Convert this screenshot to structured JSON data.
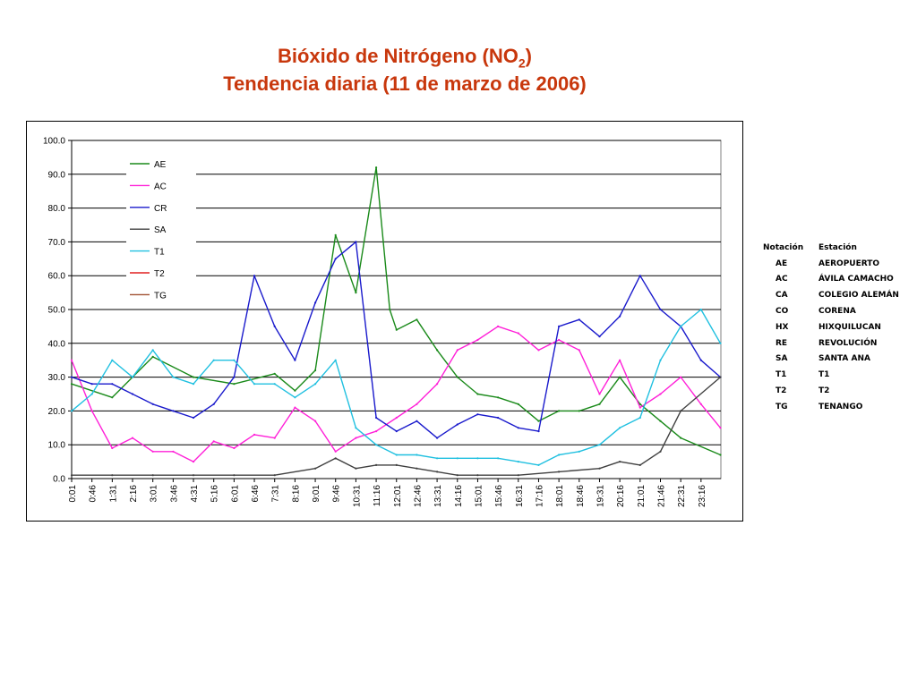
{
  "title": {
    "line1_main": "Bióxido de Nitrógeno (NO",
    "line1_sub": "2",
    "line1_end": ")",
    "line2": "Tendencia diaria (11 de marzo de 2006)"
  },
  "notation_table": {
    "header_notation": "Notación",
    "header_station": "Estación",
    "rows": [
      {
        "code": "AE",
        "name": "AEROPUERTO"
      },
      {
        "code": "AC",
        "name": "ÁVILA CAMACHO"
      },
      {
        "code": "CA",
        "name": "COLEGIO ALEMÁN"
      },
      {
        "code": "CO",
        "name": "CORENA"
      },
      {
        "code": "HX",
        "name": "HIXQUILUCAN"
      },
      {
        "code": "RE",
        "name": "REVOLUCIÓN"
      },
      {
        "code": "SA",
        "name": "SANTA ANA"
      },
      {
        "code": "T1",
        "name": "T1"
      },
      {
        "code": "T2",
        "name": "T2"
      },
      {
        "code": "TG",
        "name": "TENANGO"
      }
    ]
  },
  "chart_data": {
    "type": "line",
    "ylim": [
      0,
      100
    ],
    "yticks": [
      "0.0",
      "10.0",
      "20.0",
      "30.0",
      "40.0",
      "50.0",
      "60.0",
      "70.0",
      "80.0",
      "90.0",
      "100.0"
    ],
    "xticks": [
      "0:01",
      "0:46",
      "1:31",
      "2:16",
      "3:01",
      "3:46",
      "4:31",
      "5:16",
      "6:01",
      "6:46",
      "7:31",
      "8:16",
      "9:01",
      "9:46",
      "10:31",
      "11:16",
      "12:01",
      "12:46",
      "13:31",
      "14:16",
      "15:01",
      "15:46",
      "16:31",
      "17:16",
      "18:01",
      "18:46",
      "19:31",
      "20:16",
      "21:01",
      "21:46",
      "22:31",
      "23:16"
    ],
    "grid": "horizontal",
    "legend_position": "top-left",
    "colors": {
      "AE": "#1a8a1a",
      "AC": "#ff20d8",
      "CR": "#1a1acc",
      "SA": "#404040",
      "T1": "#20c0e0",
      "T2": "#e02020",
      "TG": "#a05030"
    },
    "series": [
      {
        "name": "AE",
        "x": [
          "0:01",
          "1:31",
          "3:01",
          "4:31",
          "6:01",
          "7:31",
          "8:16",
          "9:01",
          "9:46",
          "10:31",
          "11:16",
          "11:46",
          "12:01",
          "12:46",
          "13:31",
          "14:16",
          "15:01",
          "15:46",
          "16:31",
          "17:16",
          "18:01",
          "18:46",
          "19:31",
          "20:16",
          "21:01",
          "21:46",
          "22:31",
          "23:59"
        ],
        "values": [
          28,
          24,
          36,
          30,
          28,
          31,
          26,
          32,
          72,
          55,
          92,
          50,
          44,
          47,
          38,
          30,
          25,
          24,
          22,
          17,
          20,
          20,
          22,
          30,
          22,
          17,
          12,
          7
        ]
      },
      {
        "name": "AC",
        "x": [
          "0:01",
          "0:46",
          "1:31",
          "2:16",
          "3:01",
          "3:46",
          "4:31",
          "5:16",
          "6:01",
          "6:46",
          "7:31",
          "8:16",
          "9:01",
          "9:46",
          "10:31",
          "11:16",
          "12:01",
          "12:46",
          "13:31",
          "14:16",
          "15:01",
          "15:46",
          "16:31",
          "17:16",
          "18:01",
          "18:46",
          "19:31",
          "20:16",
          "21:01",
          "21:46",
          "22:31",
          "23:16",
          "23:59"
        ],
        "values": [
          35,
          20,
          9,
          12,
          8,
          8,
          5,
          11,
          9,
          13,
          12,
          21,
          17,
          8,
          12,
          14,
          18,
          22,
          28,
          38,
          41,
          45,
          43,
          38,
          41,
          38,
          25,
          35,
          21,
          25,
          30,
          22,
          15
        ]
      },
      {
        "name": "CR",
        "x": [
          "0:01",
          "0:46",
          "1:31",
          "2:16",
          "3:01",
          "3:46",
          "4:31",
          "5:16",
          "6:01",
          "6:46",
          "7:31",
          "8:16",
          "9:01",
          "9:46",
          "10:31",
          "11:16",
          "12:01",
          "12:46",
          "13:31",
          "14:16",
          "15:01",
          "15:46",
          "16:31",
          "17:16",
          "18:01",
          "18:46",
          "19:31",
          "20:16",
          "21:01",
          "21:46",
          "22:31",
          "23:16",
          "23:59"
        ],
        "values": [
          30,
          28,
          28,
          25,
          22,
          20,
          18,
          22,
          30,
          60,
          45,
          35,
          52,
          65,
          70,
          18,
          14,
          17,
          12,
          16,
          19,
          18,
          15,
          14,
          45,
          47,
          42,
          48,
          60,
          50,
          45,
          35,
          30
        ]
      },
      {
        "name": "SA",
        "x": [
          "0:01",
          "1:31",
          "3:01",
          "4:31",
          "6:01",
          "7:31",
          "9:01",
          "9:46",
          "10:31",
          "11:16",
          "12:01",
          "12:46",
          "13:31",
          "14:16",
          "15:01",
          "16:31",
          "18:01",
          "19:31",
          "20:16",
          "21:01",
          "21:46",
          "22:31",
          "23:59"
        ],
        "values": [
          1,
          1,
          1,
          1,
          1,
          1,
          3,
          6,
          3,
          4,
          4,
          3,
          2,
          1,
          1,
          1,
          2,
          3,
          5,
          4,
          8,
          20,
          30
        ]
      },
      {
        "name": "T1",
        "x": [
          "0:01",
          "0:46",
          "1:31",
          "2:16",
          "3:01",
          "3:46",
          "4:31",
          "5:16",
          "6:01",
          "6:46",
          "7:31",
          "8:16",
          "9:01",
          "9:46",
          "10:31",
          "11:16",
          "12:01",
          "12:46",
          "13:31",
          "14:16",
          "15:01",
          "15:46",
          "16:31",
          "17:16",
          "18:01",
          "18:46",
          "19:31",
          "20:16",
          "21:01",
          "21:46",
          "22:31",
          "23:16",
          "23:59"
        ],
        "values": [
          20,
          25,
          35,
          30,
          38,
          30,
          28,
          35,
          35,
          28,
          28,
          24,
          28,
          35,
          15,
          10,
          7,
          7,
          6,
          6,
          6,
          6,
          5,
          4,
          7,
          8,
          10,
          15,
          18,
          35,
          45,
          50,
          40
        ]
      },
      {
        "name": "T2",
        "x": [],
        "values": []
      },
      {
        "name": "TG",
        "x": [],
        "values": []
      }
    ]
  }
}
